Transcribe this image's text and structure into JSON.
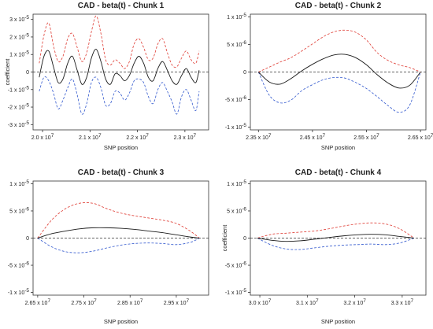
{
  "chart_data": [
    {
      "type": "line",
      "title": "CAD - beta(t) - Chunk 1",
      "xlabel": "SNP position",
      "ylabel": "coefficient",
      "xlim": [
        19800000,
        23500000
      ],
      "ylim": [
        -3.3e-05,
        3.3e-05
      ],
      "xticks": [
        20000000,
        21000000,
        22000000,
        23000000
      ],
      "xtick_labels": [
        "2.0 x 10",
        "2.1 x 10",
        "2.2 x 10",
        "2.3 x 10"
      ],
      "xtick_exp": "7",
      "yticks": [
        -3e-05,
        -2e-05,
        -1e-05,
        0,
        1e-05,
        2e-05,
        3e-05
      ],
      "ytick_labels": [
        "-3 x 10",
        "-2 x 10",
        "-1 x 10",
        "0",
        "1 x 10",
        "2 x 10",
        "3 x 10"
      ],
      "ytick_exp": "-5",
      "zero_line": true,
      "series": [
        {
          "role": "estimate",
          "color": "#1a1a1a",
          "style": "solid",
          "x": [
            19930000,
            20030000,
            20130000,
            20230000,
            20330000,
            20430000,
            20530000,
            20630000,
            20730000,
            20830000,
            20930000,
            21030000,
            21130000,
            21230000,
            21330000,
            21430000,
            21530000,
            21630000,
            21730000,
            21830000,
            21930000,
            22030000,
            22130000,
            22230000,
            22330000,
            22430000,
            22530000,
            22630000,
            22730000,
            22830000,
            22930000,
            23030000,
            23130000,
            23230000,
            23300000
          ],
          "y": [
            -3e-06,
            9e-06,
            1.2e-05,
            3e-06,
            -6e-06,
            -4e-06,
            5e-06,
            9e-06,
            1e-06,
            -7e-06,
            -3e-06,
            8e-06,
            1.3e-05,
            6e-06,
            -4e-06,
            -7e-06,
            -1e-06,
            -2e-06,
            -5e-06,
            -2e-06,
            5e-06,
            9e-06,
            5e-06,
            -3e-06,
            -5e-06,
            2e-06,
            6e-06,
            1e-06,
            -5e-06,
            -7e-06,
            -2e-06,
            2e-06,
            -3e-06,
            -6e-06,
            1e-06
          ]
        },
        {
          "role": "upper-band",
          "color": "#e0443c",
          "style": "dashed",
          "x": [
            19930000,
            20030000,
            20130000,
            20230000,
            20330000,
            20430000,
            20530000,
            20630000,
            20730000,
            20830000,
            20930000,
            21030000,
            21130000,
            21230000,
            21330000,
            21430000,
            21530000,
            21630000,
            21730000,
            21830000,
            21930000,
            22030000,
            22130000,
            22230000,
            22330000,
            22430000,
            22530000,
            22630000,
            22730000,
            22830000,
            22930000,
            23030000,
            23130000,
            23230000,
            23300000
          ],
          "y": [
            5e-06,
            2.1e-05,
            2.8e-05,
            1.5e-05,
            6e-06,
            9e-06,
            1.9e-05,
            2.2e-05,
            1.4e-05,
            6e-06,
            1.1e-05,
            2.3e-05,
            3.2e-05,
            2.2e-05,
            7e-06,
            4e-06,
            7e-06,
            5e-06,
            2e-06,
            6e-06,
            1.6e-05,
            1.9e-05,
            1.4e-05,
            7e-06,
            8e-06,
            1.6e-05,
            1.9e-05,
            1.1e-05,
            4e-06,
            3e-06,
            8e-06,
            1.2e-05,
            7e-06,
            5e-06,
            1.2e-05
          ]
        },
        {
          "role": "lower-band",
          "color": "#3a5fd0",
          "style": "dashed",
          "x": [
            19930000,
            20030000,
            20130000,
            20230000,
            20330000,
            20430000,
            20530000,
            20630000,
            20730000,
            20830000,
            20930000,
            21030000,
            21130000,
            21230000,
            21330000,
            21430000,
            21530000,
            21630000,
            21730000,
            21830000,
            21930000,
            22030000,
            22130000,
            22230000,
            22330000,
            22430000,
            22530000,
            22630000,
            22730000,
            22830000,
            22930000,
            23030000,
            23130000,
            23230000,
            23300000
          ],
          "y": [
            -1.1e-05,
            -3e-06,
            -5e-06,
            -1.2e-05,
            -2.1e-05,
            -1.6e-05,
            -9e-06,
            -4e-06,
            -1.3e-05,
            -2.4e-05,
            -1.8e-05,
            -6e-06,
            -3e-06,
            -9e-06,
            -1.9e-05,
            -1.8e-05,
            -1.1e-05,
            -1.2e-05,
            -1.6e-05,
            -1.2e-05,
            -5e-06,
            -4e-06,
            -6e-06,
            -1.4e-05,
            -1.8e-05,
            -1e-05,
            -6e-06,
            -1.1e-05,
            -1.7e-05,
            -2.4e-05,
            -1.4e-05,
            -1e-05,
            -1.6e-05,
            -2.2e-05,
            -1.1e-05
          ]
        }
      ]
    },
    {
      "type": "line",
      "title": "CAD - beta(t) - Chunk 2",
      "xlabel": "SNP position",
      "ylabel": "",
      "xlim": [
        23350000,
        26600000
      ],
      "ylim": [
        -1.05e-05,
        1.05e-05
      ],
      "xticks": [
        23500000,
        24500000,
        25500000,
        26500000
      ],
      "xtick_labels": [
        "2.35 x 10",
        "2.45 x 10",
        "2.55 x 10",
        "2.65 x 10"
      ],
      "xtick_exp": "7",
      "yticks": [
        -1e-05,
        -5e-06,
        0,
        5e-06,
        1e-05
      ],
      "ytick_labels": [
        "-1 x 10",
        "-5 x 10",
        "0",
        "5 x 10",
        "1 x 10"
      ],
      "ytick_exps": [
        "-5",
        "-6",
        "",
        "-6",
        "-5"
      ],
      "zero_line": true,
      "series": [
        {
          "role": "estimate",
          "color": "#1a1a1a",
          "style": "solid",
          "x": [
            23500000,
            23700000,
            23900000,
            24100000,
            24300000,
            24500000,
            24700000,
            24900000,
            25100000,
            25300000,
            25500000,
            25700000,
            25900000,
            26100000,
            26300000,
            26500000
          ],
          "y": [
            0,
            -1.8e-06,
            -2.2e-06,
            -1.2e-06,
            2e-07,
            1.4e-06,
            2.4e-06,
            3.1e-06,
            3.2e-06,
            2.6e-06,
            1.3e-06,
            -5e-07,
            -2e-06,
            -2.9e-06,
            -2.4e-06,
            0
          ]
        },
        {
          "role": "upper-band",
          "color": "#e0443c",
          "style": "dashed",
          "x": [
            23500000,
            23700000,
            23900000,
            24100000,
            24300000,
            24500000,
            24700000,
            24900000,
            25100000,
            25300000,
            25500000,
            25700000,
            25900000,
            26100000,
            26300000,
            26500000
          ],
          "y": [
            0,
            9e-07,
            1.8e-06,
            2.6e-06,
            3.8e-06,
            5.1e-06,
            6.4e-06,
            7.3e-06,
            7.6e-06,
            7.2e-06,
            5.8e-06,
            3.5e-06,
            2.1e-06,
            1.3e-06,
            8e-07,
            0
          ]
        },
        {
          "role": "lower-band",
          "color": "#3a5fd0",
          "style": "dashed",
          "x": [
            23500000,
            23700000,
            23900000,
            24100000,
            24300000,
            24500000,
            24700000,
            24900000,
            25100000,
            25300000,
            25500000,
            25700000,
            25900000,
            26100000,
            26300000,
            26500000
          ],
          "y": [
            0,
            -4.2e-06,
            -5.6e-06,
            -5.1e-06,
            -3.4e-06,
            -2.3e-06,
            -1.4e-06,
            -1e-06,
            -1.1e-06,
            -1.9e-06,
            -3e-06,
            -4.5e-06,
            -6.1e-06,
            -7.3e-06,
            -6e-06,
            0
          ]
        }
      ]
    },
    {
      "type": "line",
      "title": "CAD - beta(t) - Chunk 3",
      "xlabel": "SNP position",
      "ylabel": "",
      "xlim": [
        26400000,
        30200000
      ],
      "ylim": [
        -1.05e-05,
        1.05e-05
      ],
      "xticks": [
        26500000,
        27500000,
        28500000,
        29500000
      ],
      "xtick_labels": [
        "2.65 x 10",
        "2.75 x 10",
        "2.85 x 10",
        "2.95 x 10"
      ],
      "xtick_exp": "7",
      "yticks": [
        -1e-05,
        -5e-06,
        0,
        5e-06,
        1e-05
      ],
      "ytick_labels": [
        "-1 x 10",
        "-5 x 10",
        "0",
        "5 x 10",
        "1 x 10"
      ],
      "ytick_exps": [
        "-5",
        "-6",
        "",
        "-6",
        "-5"
      ],
      "zero_line": true,
      "series": [
        {
          "role": "estimate",
          "color": "#1a1a1a",
          "style": "solid",
          "x": [
            26500000,
            26800000,
            27100000,
            27400000,
            27700000,
            28000000,
            28300000,
            28600000,
            28900000,
            29200000,
            29500000,
            29800000,
            30000000
          ],
          "y": [
            0,
            8e-07,
            1.3e-06,
            1.7e-06,
            1.9e-06,
            1.9e-06,
            1.8e-06,
            1.6e-06,
            1.3e-06,
            1e-06,
            6e-07,
            2e-07,
            0
          ]
        },
        {
          "role": "upper-band",
          "color": "#e0443c",
          "style": "dashed",
          "x": [
            26500000,
            26800000,
            27100000,
            27400000,
            27700000,
            28000000,
            28300000,
            28600000,
            28900000,
            29200000,
            29500000,
            29800000,
            30000000
          ],
          "y": [
            0,
            3.3e-06,
            5.4e-06,
            6.4e-06,
            6.4e-06,
            5.4e-06,
            4.6e-06,
            4.1e-06,
            3.7e-06,
            3.3e-06,
            2.7e-06,
            1.3e-06,
            0
          ]
        },
        {
          "role": "lower-band",
          "color": "#3a5fd0",
          "style": "dashed",
          "x": [
            26500000,
            26800000,
            27100000,
            27400000,
            27700000,
            28000000,
            28300000,
            28600000,
            28900000,
            29200000,
            29500000,
            29800000,
            30000000
          ],
          "y": [
            0,
            -1.6e-06,
            -2.5e-06,
            -2.7e-06,
            -2.4e-06,
            -1.8e-06,
            -1.3e-06,
            -1e-06,
            -9e-07,
            -1e-06,
            -1.2e-06,
            -8e-07,
            0
          ]
        }
      ]
    },
    {
      "type": "line",
      "title": "CAD - beta(t) - Chunk 4",
      "xlabel": "SNP position",
      "ylabel": "coefficient",
      "xlim": [
        29800000,
        33500000
      ],
      "ylim": [
        -1.05e-05,
        1.05e-05
      ],
      "xticks": [
        30000000,
        31000000,
        32000000,
        33000000
      ],
      "xtick_labels": [
        "3.0 x 10",
        "3.1 x 10",
        "3.2 x 10",
        "3.3 x 10"
      ],
      "xtick_exp": "7",
      "yticks": [
        -1e-05,
        -5e-06,
        0,
        5e-06,
        1e-05
      ],
      "ytick_labels": [
        "-1 x 10",
        "-5 x 10",
        "0",
        "5 x 10",
        "1 x 10"
      ],
      "ytick_exps": [
        "-5",
        "-6",
        "",
        "-6",
        "-5"
      ],
      "zero_line": true,
      "series": [
        {
          "role": "estimate",
          "color": "#1a1a1a",
          "style": "solid",
          "x": [
            29950000,
            30250000,
            30550000,
            30850000,
            31150000,
            31450000,
            31750000,
            32050000,
            32350000,
            32650000,
            32950000,
            33250000
          ],
          "y": [
            0,
            -4e-07,
            -6e-07,
            -5e-07,
            -2e-07,
            1e-07,
            4e-07,
            6e-07,
            7e-07,
            6e-07,
            3e-07,
            0
          ]
        },
        {
          "role": "upper-band",
          "color": "#e0443c",
          "style": "dashed",
          "x": [
            29950000,
            30250000,
            30550000,
            30850000,
            31150000,
            31450000,
            31750000,
            32050000,
            32350000,
            32650000,
            32950000,
            33250000
          ],
          "y": [
            0,
            7e-07,
            9e-07,
            1.1e-06,
            1.3e-06,
            1.7e-06,
            2.2e-06,
            2.6e-06,
            2.8e-06,
            2.6e-06,
            1.7e-06,
            0
          ]
        },
        {
          "role": "lower-band",
          "color": "#3a5fd0",
          "style": "dashed",
          "x": [
            29950000,
            30250000,
            30550000,
            30850000,
            31150000,
            31450000,
            31750000,
            32050000,
            32350000,
            32650000,
            32950000,
            33250000
          ],
          "y": [
            0,
            -1.3e-06,
            -2e-06,
            -2.1e-06,
            -1.8e-06,
            -1.5e-06,
            -1.3e-06,
            -1.2e-06,
            -1.1e-06,
            -1.2e-06,
            -9e-07,
            0
          ]
        }
      ]
    }
  ]
}
